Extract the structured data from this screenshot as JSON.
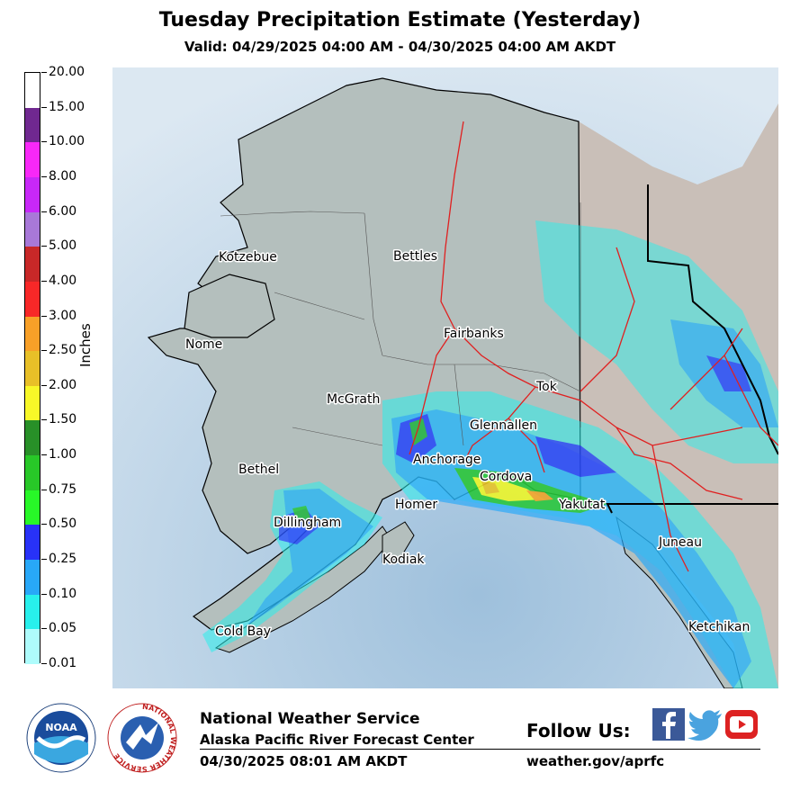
{
  "header": {
    "title": "Tuesday Precipitation Estimate (Yesterday)",
    "subtitle": "Valid: 04/29/2025 04:00 AM - 04/30/2025 04:00 AM AKDT"
  },
  "legend": {
    "axis_label": "Inches",
    "ticks": [
      "0.01",
      "0.05",
      "0.10",
      "0.25",
      "0.50",
      "0.75",
      "1.00",
      "1.50",
      "2.00",
      "2.50",
      "3.00",
      "4.00",
      "5.00",
      "6.00",
      "8.00",
      "10.00",
      "15.00",
      "20.00"
    ],
    "colors": [
      "#aefcfc",
      "#28f0ec",
      "#28a8f8",
      "#2832f8",
      "#28f828",
      "#28c828",
      "#289028",
      "#f8f828",
      "#e8c028",
      "#f8a028",
      "#f82828",
      "#c82828",
      "#a878d8",
      "#c828f8",
      "#f828f8",
      "#702890",
      "#ffffff"
    ]
  },
  "map": {
    "cities": [
      {
        "name": "Kotzebue"
      },
      {
        "name": "Bettles"
      },
      {
        "name": "Nome"
      },
      {
        "name": "Fairbanks"
      },
      {
        "name": "McGrath"
      },
      {
        "name": "Tok"
      },
      {
        "name": "Glennallen"
      },
      {
        "name": "Anchorage"
      },
      {
        "name": "Bethel"
      },
      {
        "name": "Cordova"
      },
      {
        "name": "Homer"
      },
      {
        "name": "Yakutat"
      },
      {
        "name": "Dillingham"
      },
      {
        "name": "Juneau"
      },
      {
        "name": "Kodiak"
      },
      {
        "name": "Ketchikan"
      },
      {
        "name": "Cold Bay"
      }
    ],
    "colors": {
      "ocean": "#c9dcec",
      "land": "#b4bfbd",
      "roads": "#e02020",
      "border": "#000000"
    }
  },
  "footer": {
    "org_name": "National Weather Service",
    "office": "Alaska Pacific River Forecast Center",
    "issued": "04/30/2025 08:01 AM AKDT",
    "follow_label": "Follow Us:",
    "url": "weather.gov/aprfc",
    "noaa_text": "NOAA",
    "nws_ring_text": "NATIONAL WEATHER SERVICE"
  }
}
